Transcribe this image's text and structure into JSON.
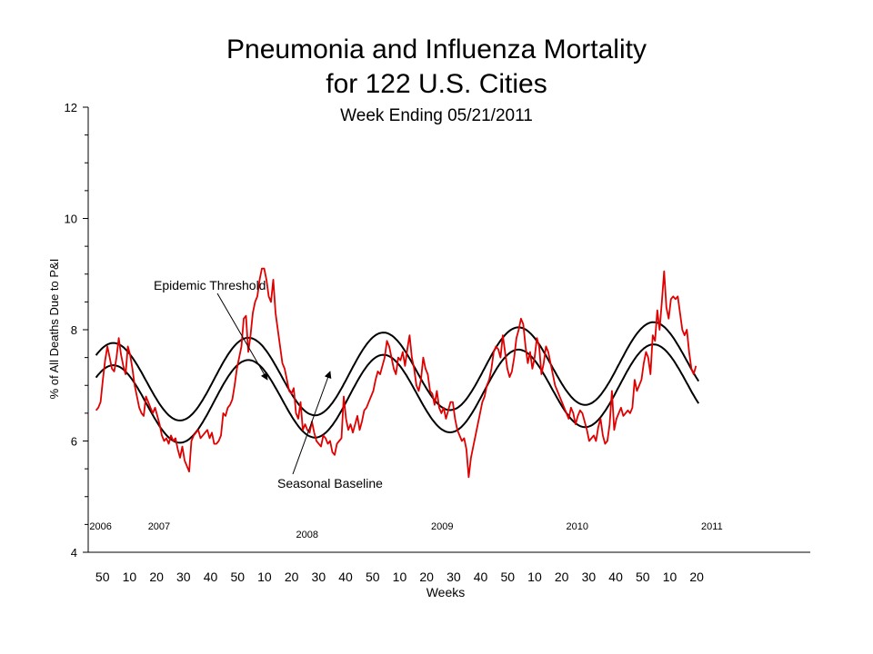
{
  "title_line1": "Pneumonia and Influenza Mortality",
  "title_line2": "for 122 U.S. Cities",
  "subtitle": "Week Ending   05/21/2011",
  "chart_data": {
    "type": "line",
    "ylabel": "% of All Deaths Due to P&I",
    "xlabel": "Weeks",
    "ylim": [
      4,
      12
    ],
    "yticks": [
      4,
      6,
      8,
      10,
      12
    ],
    "week_ticks": [
      "50",
      "10",
      "20",
      "30",
      "40",
      "50",
      "10",
      "20",
      "30",
      "40",
      "50",
      "10",
      "20",
      "30",
      "40",
      "50",
      "10",
      "20",
      "30",
      "40",
      "50",
      "10",
      "20"
    ],
    "year_labels": [
      "2006",
      "2007",
      "2008",
      "2009",
      "2010",
      "2011"
    ],
    "annotations": [
      "Epidemic Threshold",
      "Seasonal Baseline"
    ],
    "colors": {
      "observed": "#e00000",
      "baseline": "#000000",
      "threshold": "#000000"
    },
    "series": [
      {
        "role": "baseline",
        "params": {
          "mean": 6.63,
          "trend_per_week": 0.0018,
          "amplitude": 0.72,
          "period_weeks": 52,
          "peak_week_index": 6.5
        }
      },
      {
        "role": "threshold",
        "offset_from_baseline": 0.4
      },
      {
        "role": "observed",
        "values": [
          6.55,
          6.6,
          6.7,
          7.1,
          7.45,
          7.7,
          7.5,
          7.3,
          7.25,
          7.5,
          7.85,
          7.55,
          7.35,
          7.2,
          7.7,
          7.55,
          7.3,
          7.0,
          6.8,
          6.6,
          6.5,
          6.45,
          6.8,
          6.7,
          6.6,
          6.5,
          6.6,
          6.45,
          6.3,
          6.1,
          6.0,
          6.05,
          5.95,
          6.1,
          6.0,
          6.05,
          5.85,
          5.7,
          5.9,
          5.65,
          5.55,
          5.45,
          6.0,
          6.1,
          6.15,
          6.2,
          6.05,
          6.1,
          6.15,
          6.2,
          6.05,
          6.15,
          5.95,
          5.95,
          6.0,
          6.1,
          6.5,
          6.45,
          6.6,
          6.65,
          6.75,
          7.0,
          7.3,
          7.5,
          7.7,
          8.2,
          8.25,
          7.6,
          7.9,
          8.3,
          8.5,
          8.6,
          8.9,
          9.1,
          9.1,
          8.9,
          8.6,
          8.5,
          8.9,
          8.3,
          8.0,
          7.7,
          7.4,
          7.3,
          7.1,
          6.9,
          6.85,
          6.95,
          6.5,
          6.4,
          6.7,
          6.2,
          6.3,
          6.2,
          6.15,
          6.35,
          6.15,
          6.0,
          5.95,
          5.9,
          6.1,
          6.05,
          5.95,
          6.0,
          5.8,
          5.75,
          5.95,
          6.0,
          6.05,
          6.8,
          6.4,
          6.2,
          6.3,
          6.15,
          6.3,
          6.45,
          6.2,
          6.35,
          6.55,
          6.6,
          6.7,
          6.8,
          6.9,
          7.1,
          7.25,
          7.2,
          7.35,
          7.5,
          7.8,
          7.7,
          7.5,
          7.3,
          7.2,
          7.5,
          7.45,
          7.6,
          7.35,
          7.65,
          7.9,
          7.5,
          7.3,
          7.0,
          6.9,
          7.1,
          7.5,
          7.3,
          7.2,
          6.9,
          6.85,
          6.65,
          6.9,
          6.6,
          6.5,
          6.6,
          6.4,
          6.55,
          6.7,
          6.7,
          6.4,
          6.2,
          6.1,
          6.0,
          6.05,
          5.85,
          5.35,
          5.7,
          5.9,
          6.1,
          6.3,
          6.5,
          6.7,
          6.8,
          7.0,
          7.1,
          7.3,
          7.6,
          7.7,
          7.65,
          7.5,
          7.9,
          7.6,
          7.3,
          7.15,
          7.25,
          7.5,
          7.85,
          8.0,
          8.2,
          8.1,
          7.7,
          7.4,
          7.6,
          7.3,
          7.5,
          7.85,
          7.7,
          7.2,
          7.4,
          7.7,
          7.6,
          7.4,
          7.2,
          7.0,
          6.9,
          6.8,
          6.7,
          6.6,
          6.5,
          6.4,
          6.6,
          6.5,
          6.3,
          6.45,
          6.55,
          6.5,
          6.35,
          6.2,
          6.0,
          6.05,
          6.1,
          6.0,
          6.25,
          6.4,
          6.1,
          5.95,
          6.0,
          6.3,
          6.9,
          6.2,
          6.4,
          6.5,
          6.6,
          6.45,
          6.5,
          6.55,
          6.5,
          6.6,
          7.1,
          6.9,
          7.0,
          7.1,
          7.4,
          7.6,
          7.5,
          7.2,
          7.9,
          7.8,
          8.35,
          8.0,
          8.5,
          9.05,
          8.4,
          8.2,
          8.55,
          8.6,
          8.55,
          8.6,
          8.3,
          8.0,
          7.9,
          8.0,
          7.6,
          7.3,
          7.2,
          7.35
        ]
      }
    ]
  }
}
